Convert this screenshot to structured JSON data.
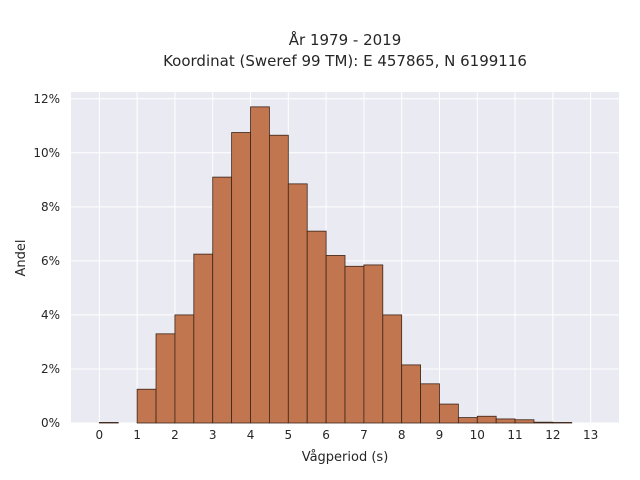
{
  "chart_data": {
    "type": "bar",
    "title_lines": [
      "År 1979 - 2019",
      "Koordinat (Sweref 99 TM): E 457865, N 6199116"
    ],
    "xlabel": "Vågperiod (s)",
    "ylabel": "Andel",
    "bin_width": 0.5,
    "bin_starts": [
      0.0,
      0.5,
      1.0,
      1.5,
      2.0,
      2.5,
      3.0,
      3.5,
      4.0,
      4.5,
      5.0,
      5.5,
      6.0,
      6.5,
      7.0,
      7.5,
      8.0,
      8.5,
      9.0,
      9.5,
      10.0,
      10.5,
      11.0,
      11.5,
      12.0,
      12.5
    ],
    "values": [
      0.02,
      0.0,
      1.25,
      3.3,
      4.0,
      6.25,
      9.1,
      10.75,
      11.7,
      10.65,
      8.85,
      7.1,
      6.2,
      5.8,
      5.85,
      4.0,
      2.15,
      1.45,
      0.7,
      0.2,
      0.25,
      0.15,
      0.12,
      0.03,
      0.02,
      0.0
    ],
    "xlim": [
      -0.75,
      13.75
    ],
    "ylim": [
      0,
      12.25
    ],
    "x_ticks": [
      "0",
      "1",
      "2",
      "3",
      "4",
      "5",
      "6",
      "7",
      "8",
      "9",
      "10",
      "11",
      "12",
      "13"
    ],
    "y_ticks": [
      "0%",
      "2%",
      "4%",
      "6%",
      "8%",
      "10%",
      "12%"
    ],
    "bar_color": "#C1764F",
    "bar_edge_color": "#3b2417",
    "plot_background": "#EAEAF2",
    "grid_color": "#FFFFFF",
    "grid": true
  }
}
